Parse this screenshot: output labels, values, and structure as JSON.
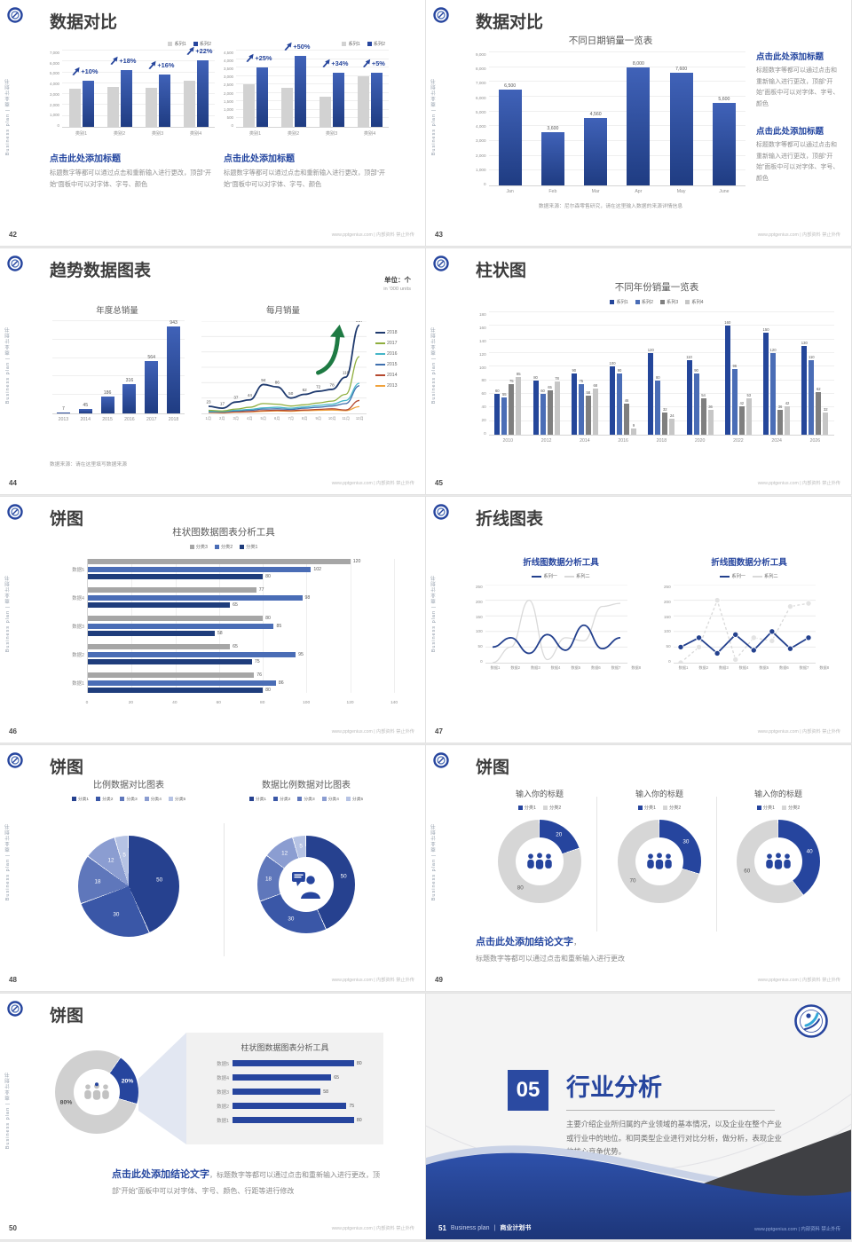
{
  "common": {
    "sidebar": "Business plan | 商业计划书",
    "footer_right": "www.pptgenius.com | 内部资料 禁止外传"
  },
  "colors": {
    "navy": "#26459e",
    "navy_dark": "#1f3c82",
    "mid_blue": "#4a6db6",
    "gray_bar": "#d2d2d2",
    "dark_gray_bar": "#a6a6a6",
    "heading_blue": "#2446a0",
    "green_arrow": "#1e7a43",
    "cover_blue": "#2b4aa1",
    "cover_dark": "#3f4044"
  },
  "slides": {
    "s42": {
      "page": "42",
      "title": "数据对比",
      "blocks": [
        {
          "heading": "点击此处添加标题",
          "body": "标题数字等都可以通过点击和重新输入进行更改，顶部“开始”面板中可以对字体、字号、颜色"
        },
        {
          "heading": "点击此处添加标题",
          "body": "标题数字等都可以通过点击和重新输入进行更改，顶部“开始”面板中可以对字体、字号、颜色"
        }
      ]
    },
    "s43": {
      "page": "43",
      "title": "数据对比",
      "source": "数据来源：尼尔森零售研究，请在这里输入数据的来源详情信息",
      "blocks": [
        {
          "heading": "点击此处添加标题",
          "body": "标题数字等都可以通过点击和重新输入进行更改，顶部“开始”面板中可以对字体、字号、颜色"
        },
        {
          "heading": "点击此处添加标题",
          "body": "标题数字等都可以通过点击和重新输入进行更改，顶部“开始”面板中可以对字体、字号、颜色"
        }
      ]
    },
    "s44": {
      "page": "44",
      "title": "趋势数据图表",
      "unit": "单位：个",
      "unit_sub": "in '000 units",
      "source": "数据来源：请在这里填写数据来源"
    },
    "s45": {
      "page": "45",
      "title": "柱状图"
    },
    "s46": {
      "page": "46",
      "title": "饼图"
    },
    "s47": {
      "page": "47",
      "title": "折线图表"
    },
    "s48": {
      "page": "48",
      "title": "饼图"
    },
    "s49": {
      "page": "49",
      "title": "饼图",
      "conclusion_heading": "点击此处添加结论文字",
      "conclusion_comma": "，",
      "conclusion_body": "标题数字等都可以通过点击和重新输入进行更改"
    },
    "s50": {
      "page": "50",
      "title": "饼图",
      "conclusion_heading": "点击此处添加结论文字",
      "conclusion_body": "，标题数字等都可以通过点击和重新输入进行更改，顶部“开始”面板中可以对字体、字号、颜色、行距等进行修改"
    },
    "s51": {
      "page": "51",
      "number": "05",
      "title": "行业分析",
      "body": "主要介绍企业所归属的产业领域的基本情况，以及企业在整个产业或行业中的地位。和同类型企业进行对比分析，做分析，表现企业的核心竞争优势。",
      "footer_brand": "Business plan",
      "footer_sep": "|",
      "footer_book": "商业计划书"
    }
  },
  "chart_data": [
    {
      "id": "c42a",
      "type": "bar",
      "legend_pos": "top-right",
      "categories": [
        "类别1",
        "类别2",
        "类别3",
        "类别4"
      ],
      "series": [
        {
          "name": "系列1",
          "color": "#d2d2d2",
          "values": [
            3500,
            3700,
            3600,
            4200
          ]
        },
        {
          "name": "系列2",
          "color": "grad",
          "values": [
            4200,
            5200,
            4800,
            6100
          ]
        }
      ],
      "growth_labels": [
        "+10%",
        "+18%",
        "+16%",
        "+22%"
      ],
      "ylim": [
        0,
        7000
      ],
      "ystep": 1000
    },
    {
      "id": "c42b",
      "type": "bar",
      "legend_pos": "top-right",
      "categories": [
        "类别1",
        "类别2",
        "类别3",
        "类别4"
      ],
      "series": [
        {
          "name": "系列1",
          "color": "#d2d2d2",
          "values": [
            2500,
            2300,
            1800,
            3000
          ]
        },
        {
          "name": "系列2",
          "color": "grad",
          "values": [
            3500,
            4200,
            3200,
            3200
          ]
        }
      ],
      "growth_labels": [
        "+25%",
        "+50%",
        "+34%",
        "+5%"
      ],
      "ylim": [
        0,
        4500
      ],
      "ystep": 500
    },
    {
      "id": "c43",
      "type": "bar",
      "title": "不同日期销量一览表",
      "categories": [
        "Jan",
        "Feb",
        "Mar",
        "Apr",
        "May",
        "June"
      ],
      "series": [
        {
          "name": "销量",
          "color": "grad",
          "values": [
            6500,
            3600,
            4560,
            8000,
            7600,
            5600
          ]
        }
      ],
      "ylim": [
        0,
        9000
      ],
      "ystep": 1000,
      "show_labels": true
    },
    {
      "id": "c44a",
      "type": "bar",
      "title": "年度总销量",
      "categories": [
        "2013",
        "2014",
        "2015",
        "2016",
        "2017",
        "2018"
      ],
      "series": [
        {
          "name": "年度总销量",
          "color": "grad",
          "values": [
            7,
            45,
            186,
            316,
            564,
            943
          ]
        }
      ],
      "ylim": [
        0,
        1000
      ],
      "ystep": 200,
      "show_labels": true
    },
    {
      "id": "c44b",
      "type": "line",
      "title": "每月销量",
      "x": [
        "1月",
        "2月",
        "3月",
        "4月",
        "5月",
        "6月",
        "7月",
        "8月",
        "9月",
        "10月",
        "11月",
        "12月"
      ],
      "ylim": [
        0,
        300
      ],
      "ystep": 50,
      "smooth": true,
      "series": [
        {
          "name": "2018",
          "color": "#1f3a6e",
          "values": [
            23,
            17,
            37,
            44,
            94,
            86,
            50,
            62,
            72,
            78,
            118,
            287
          ],
          "show_labels": true
        },
        {
          "name": "2017",
          "color": "#8fae3e",
          "values": [
            10,
            8,
            14,
            20,
            32,
            30,
            24,
            28,
            34,
            40,
            62,
            185
          ]
        },
        {
          "name": "2016",
          "color": "#45b6c8",
          "values": [
            7,
            6,
            10,
            13,
            18,
            20,
            17,
            21,
            26,
            30,
            42,
            98
          ]
        },
        {
          "name": "2015",
          "color": "#3f6fae",
          "values": [
            5,
            5,
            8,
            10,
            14,
            15,
            13,
            17,
            20,
            24,
            32,
            90
          ]
        },
        {
          "name": "2014",
          "color": "#b5492f",
          "values": [
            4,
            3,
            5,
            6,
            9,
            10,
            9,
            11,
            13,
            15,
            11,
            42
          ]
        },
        {
          "name": "2013",
          "color": "#f0a23c",
          "values": [
            3,
            2,
            4,
            5,
            7,
            8,
            7,
            9,
            10,
            11,
            9,
            22
          ]
        }
      ]
    },
    {
      "id": "c45",
      "type": "bar",
      "title": "不同年份销量一览表",
      "categories": [
        "2010",
        "2012",
        "2014",
        "2016",
        "2018",
        "2020",
        "2022",
        "2024",
        "2026"
      ],
      "series": [
        {
          "name": "系列1",
          "color": "#24469a",
          "values": [
            60,
            80,
            90,
            100,
            120,
            110,
            160,
            150,
            130
          ]
        },
        {
          "name": "系列2",
          "color": "#4a6db6",
          "values": [
            55,
            60,
            75,
            90,
            80,
            90,
            96,
            120,
            110
          ]
        },
        {
          "name": "系列3",
          "color": "#7f7f7f",
          "values": [
            75,
            65,
            58,
            46,
            32,
            54,
            42,
            36,
            62
          ]
        },
        {
          "name": "系列4",
          "color": "#c6c6c6",
          "values": [
            85,
            78,
            68,
            9,
            24,
            36,
            53,
            42,
            32
          ]
        }
      ],
      "ylim": [
        0,
        180
      ],
      "ystep": 20,
      "show_labels": true
    },
    {
      "id": "c46",
      "type": "hbar",
      "title": "柱状图数据图表分析工具",
      "categories": [
        "数据5",
        "数据4",
        "数据3",
        "数据2",
        "数据1"
      ],
      "series": [
        {
          "name": "分类3",
          "color": "#a6a6a6",
          "values": [
            120,
            77,
            80,
            65,
            76
          ]
        },
        {
          "name": "分类2",
          "color": "#4a6db6",
          "values": [
            102,
            98,
            85,
            95,
            86
          ]
        },
        {
          "name": "分类1",
          "color": "#1f3d7c",
          "values": [
            80,
            65,
            58,
            75,
            80
          ]
        }
      ],
      "xlim": [
        0,
        140
      ],
      "xstep": 20,
      "show_labels": true
    },
    {
      "id": "c47a",
      "type": "line",
      "title": "折线图数据分析工具",
      "x": [
        "数据1",
        "数据2",
        "数据3",
        "数据4",
        "数据5",
        "数据6",
        "数据7",
        "数据8"
      ],
      "ylim": [
        0,
        250
      ],
      "ystep": 50,
      "smooth": true,
      "series": [
        {
          "name": "系列一",
          "color": "#24418e",
          "values": [
            50,
            80,
            30,
            90,
            40,
            120,
            45,
            80
          ]
        },
        {
          "name": "系列二",
          "color": "#d9d9d9",
          "values": [
            0,
            50,
            200,
            10,
            80,
            70,
            180,
            190
          ]
        }
      ]
    },
    {
      "id": "c47b",
      "type": "line",
      "title": "折线图数据分析工具",
      "x": [
        "数据1",
        "数据2",
        "数据3",
        "数据4",
        "数据5",
        "数据6",
        "数据7",
        "数据8"
      ],
      "ylim": [
        0,
        250
      ],
      "ystep": 50,
      "markers": true,
      "series": [
        {
          "name": "系列一",
          "color": "#24418e",
          "values": [
            50,
            80,
            30,
            90,
            40,
            100,
            45,
            80
          ]
        },
        {
          "name": "系列二",
          "color": "#d9d9d9",
          "values": [
            0,
            50,
            200,
            10,
            80,
            70,
            180,
            190
          ]
        }
      ]
    },
    {
      "id": "c48a",
      "type": "pie",
      "title": "比例数据对比图表",
      "legend": [
        "分类1",
        "分类2",
        "分类3",
        "分类4",
        "分类5"
      ],
      "values": [
        50,
        30,
        18,
        12,
        5
      ],
      "colors": [
        "#26418f",
        "#3a57a7",
        "#5f77bb",
        "#8b9dd1",
        "#b6c3e4"
      ],
      "lab_colors": [
        "#fff",
        "#fff",
        "#fff",
        "#fff",
        "#fff"
      ]
    },
    {
      "id": "c48b",
      "type": "donut",
      "title": "数据比例数据对比图表",
      "legend": [
        "分类1",
        "分类2",
        "分类3",
        "分类4",
        "分类5"
      ],
      "values": [
        50,
        30,
        18,
        12,
        5
      ],
      "colors": [
        "#26418f",
        "#3a57a7",
        "#5f77bb",
        "#8b9dd1",
        "#b6c3e4"
      ],
      "lab_colors": [
        "#fff",
        "#fff",
        "#fff",
        "#fff",
        "#fff"
      ]
    },
    {
      "id": "c49a",
      "type": "donut",
      "title": "输入你的标题",
      "legend": [
        "分类1",
        "分类2"
      ],
      "values": [
        20,
        80
      ],
      "colors": [
        "#26459e",
        "#d6d6d6"
      ],
      "lab_colors": [
        "#fff",
        "#595959"
      ]
    },
    {
      "id": "c49b",
      "type": "donut",
      "title": "输入你的标题",
      "legend": [
        "分类1",
        "分类2"
      ],
      "values": [
        30,
        70
      ],
      "colors": [
        "#26459e",
        "#d6d6d6"
      ],
      "lab_colors": [
        "#fff",
        "#595959"
      ]
    },
    {
      "id": "c49c",
      "type": "donut",
      "title": "输入你的标题",
      "legend": [
        "分类1",
        "分类2"
      ],
      "values": [
        40,
        60
      ],
      "colors": [
        "#26459e",
        "#d6d6d6"
      ],
      "lab_colors": [
        "#fff",
        "#595959"
      ]
    },
    {
      "id": "c50a",
      "type": "donut",
      "rotate": 35,
      "values": [
        20,
        80
      ],
      "labels": [
        "20%",
        "80%"
      ],
      "colors": [
        "#26459e",
        "#d0d0d0"
      ],
      "lab_colors": [
        "#fff",
        "#4f4f4f"
      ]
    },
    {
      "id": "c50b",
      "type": "hbar",
      "title": "柱状图数据图表分析工具",
      "categories": [
        "数据5",
        "数据4",
        "数据3",
        "数据2",
        "数据1"
      ],
      "series": [
        {
          "name": "数据",
          "color": "#26459e",
          "values": [
            80,
            65,
            58,
            75,
            80
          ]
        }
      ],
      "xlim": [
        0,
        90
      ],
      "show_labels": true,
      "no_axis": true
    }
  ]
}
